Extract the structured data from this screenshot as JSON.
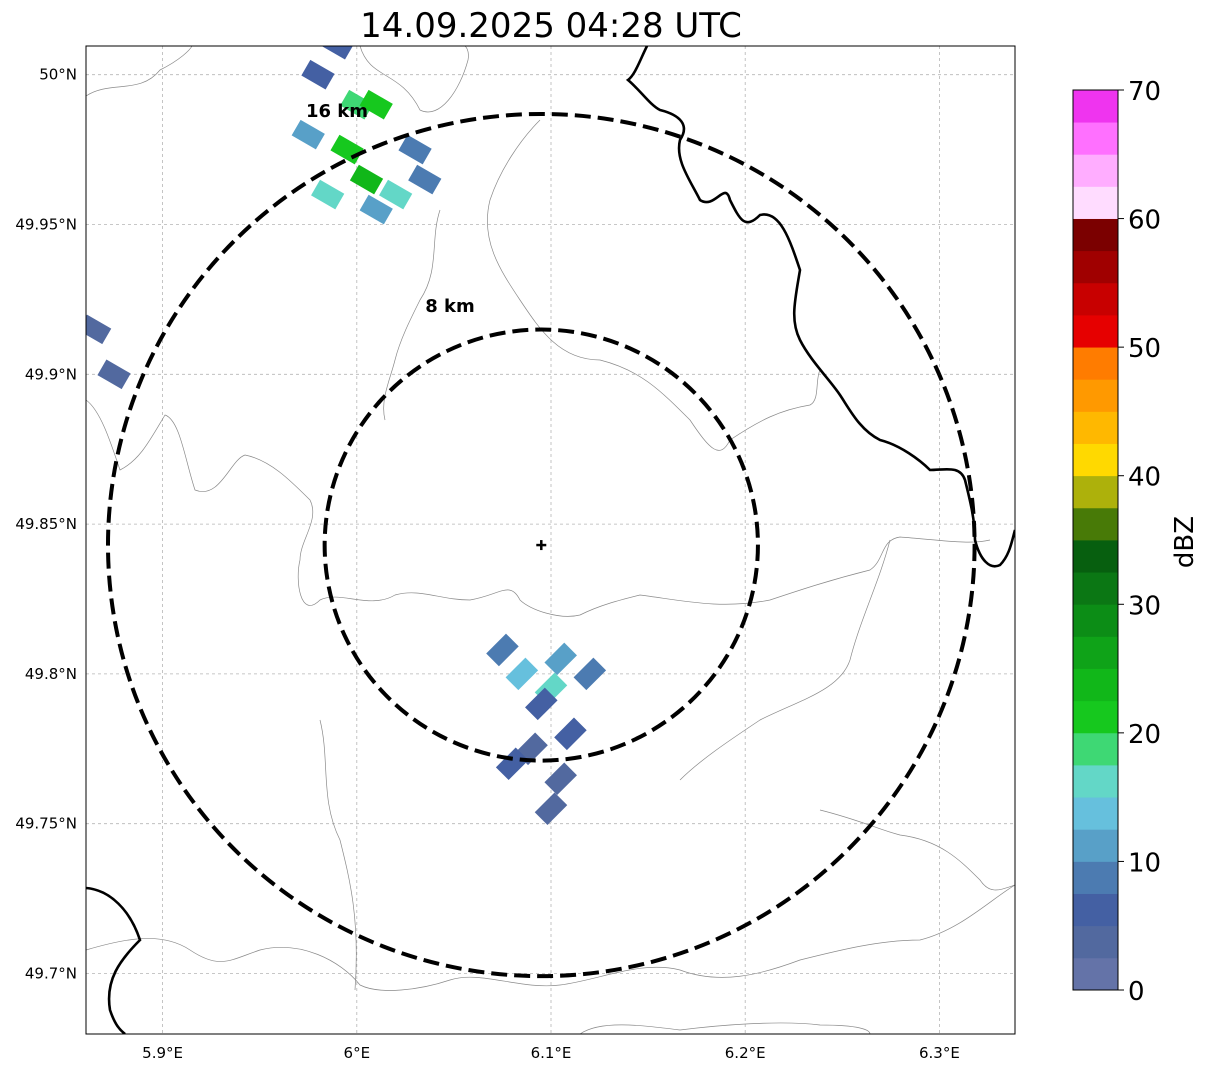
{
  "title": "14.09.2025 04:28 UTC",
  "map": {
    "lon_range": [
      5.86,
      6.34
    ],
    "lat_range": [
      49.68,
      50.01
    ],
    "x_ticks": [
      {
        "value": 5.9,
        "label": "5.9°E"
      },
      {
        "value": 6.0,
        "label": "6°E"
      },
      {
        "value": 6.1,
        "label": "6.1°E"
      },
      {
        "value": 6.2,
        "label": "6.2°E"
      },
      {
        "value": 6.3,
        "label": "6.3°E"
      }
    ],
    "y_ticks": [
      {
        "value": 49.7,
        "label": "49.7°N"
      },
      {
        "value": 49.75,
        "label": "49.75°N"
      },
      {
        "value": 49.8,
        "label": "49.8°N"
      },
      {
        "value": 49.85,
        "label": "49.85°N"
      },
      {
        "value": 49.9,
        "label": "49.9°N"
      },
      {
        "value": 49.95,
        "label": "49.95°N"
      },
      {
        "value": 50.0,
        "label": "50°N"
      }
    ],
    "grid": true,
    "radar_site": {
      "lon": 6.095,
      "lat": 49.843
    },
    "range_rings": [
      {
        "radius_km": 8,
        "label": "8 km"
      },
      {
        "radius_km": 16,
        "label": "16 km"
      }
    ],
    "echoes": [
      {
        "lon": 5.995,
        "lat": 49.975,
        "dbz": 22,
        "rot": 30
      },
      {
        "lon": 6.005,
        "lat": 49.965,
        "dbz": 24,
        "rot": 30
      },
      {
        "lon": 6.0,
        "lat": 49.99,
        "dbz": 18,
        "rot": 30
      },
      {
        "lon": 5.985,
        "lat": 49.96,
        "dbz": 15,
        "rot": 30
      },
      {
        "lon": 6.02,
        "lat": 49.96,
        "dbz": 17,
        "rot": 30
      },
      {
        "lon": 6.035,
        "lat": 49.965,
        "dbz": 8,
        "rot": 30
      },
      {
        "lon": 5.98,
        "lat": 50.0,
        "dbz": 6,
        "rot": 30
      },
      {
        "lon": 6.01,
        "lat": 49.955,
        "dbz": 10,
        "rot": 30
      },
      {
        "lon": 5.975,
        "lat": 49.98,
        "dbz": 12,
        "rot": 30
      },
      {
        "lon": 6.01,
        "lat": 49.99,
        "dbz": 20,
        "rot": 30
      },
      {
        "lon": 5.99,
        "lat": 50.01,
        "dbz": 5,
        "rot": 30
      },
      {
        "lon": 6.03,
        "lat": 49.975,
        "dbz": 9,
        "rot": 30
      },
      {
        "lon": 5.865,
        "lat": 49.915,
        "dbz": 4,
        "rot": 30
      },
      {
        "lon": 5.875,
        "lat": 49.9,
        "dbz": 3,
        "rot": 30
      },
      {
        "lon": 6.085,
        "lat": 49.8,
        "dbz": 13,
        "rot": -45
      },
      {
        "lon": 6.1,
        "lat": 49.795,
        "dbz": 16,
        "rot": -45
      },
      {
        "lon": 6.105,
        "lat": 49.805,
        "dbz": 11,
        "rot": -45
      },
      {
        "lon": 6.075,
        "lat": 49.808,
        "dbz": 8,
        "rot": -45
      },
      {
        "lon": 6.12,
        "lat": 49.8,
        "dbz": 9,
        "rot": -45
      },
      {
        "lon": 6.095,
        "lat": 49.79,
        "dbz": 7,
        "rot": -45
      },
      {
        "lon": 6.09,
        "lat": 49.775,
        "dbz": 4,
        "rot": -45
      },
      {
        "lon": 6.105,
        "lat": 49.765,
        "dbz": 3,
        "rot": -45
      },
      {
        "lon": 6.08,
        "lat": 49.77,
        "dbz": 5,
        "rot": -45
      },
      {
        "lon": 6.11,
        "lat": 49.78,
        "dbz": 6,
        "rot": -45
      },
      {
        "lon": 6.1,
        "lat": 49.755,
        "dbz": 3,
        "rot": -45
      }
    ]
  },
  "colorbar": {
    "label": "dBZ",
    "min": 0,
    "max": 70,
    "ticks": [
      {
        "value": 0,
        "label": "0"
      },
      {
        "value": 10,
        "label": "10"
      },
      {
        "value": 20,
        "label": "20"
      },
      {
        "value": 30,
        "label": "30"
      },
      {
        "value": 40,
        "label": "40"
      },
      {
        "value": 50,
        "label": "50"
      },
      {
        "value": 60,
        "label": "60"
      },
      {
        "value": 70,
        "label": "70"
      }
    ],
    "colors": [
      "#6473a8",
      "#52699f",
      "#4460a3",
      "#4c7bb1",
      "#58a0c8",
      "#66c0dd",
      "#63d7c7",
      "#3ed874",
      "#16c81e",
      "#11b719",
      "#0fa318",
      "#0c8d16",
      "#0b7714",
      "#075f0f",
      "#487a07",
      "#adb10b",
      "#ffd900",
      "#ffb800",
      "#ff9900",
      "#ff7c00",
      "#e60000",
      "#c80000",
      "#a00000",
      "#7b0000",
      "#ffdcff",
      "#ffadff",
      "#ff70ff",
      "#ef34ef"
    ]
  }
}
